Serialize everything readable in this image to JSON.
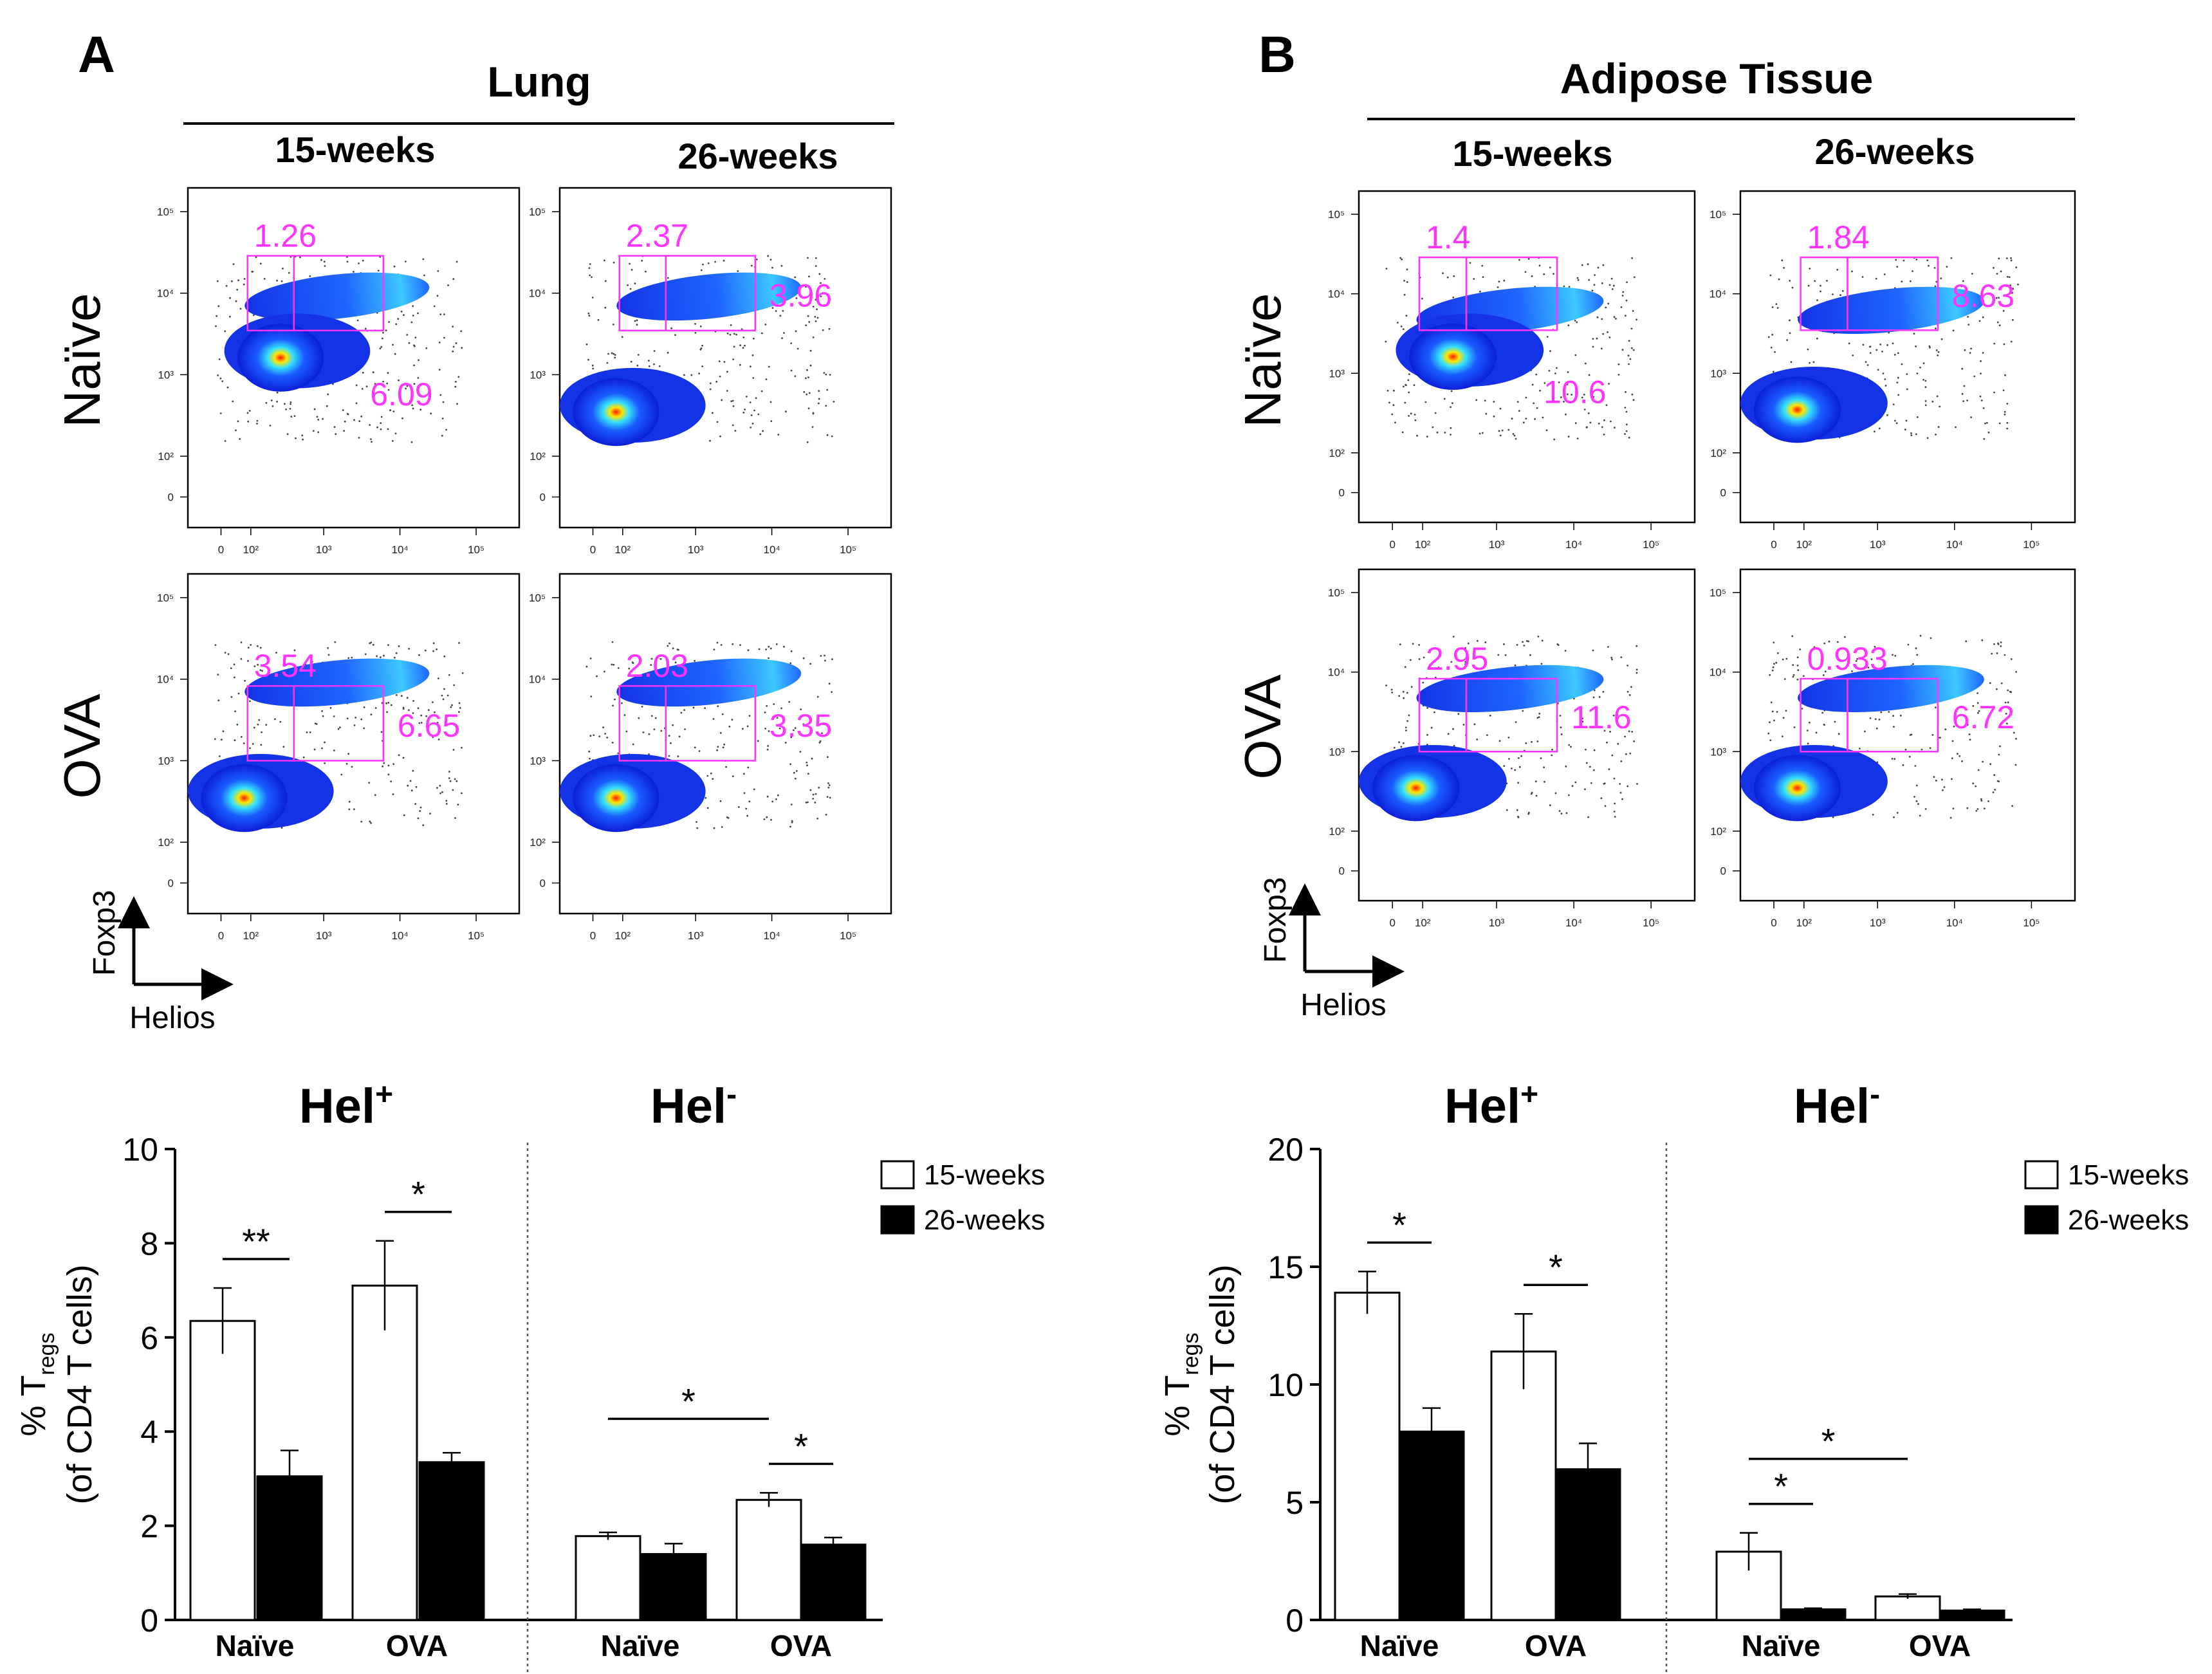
{
  "colors": {
    "gate": "#ff33ff",
    "gate_label": "#ff33ff",
    "bar_15": "#ffffff",
    "bar_26": "#000000",
    "axis": "#000000",
    "dens_low": "#0d1fd9",
    "dens_mid": "#33e0ff",
    "dens_high": "#ffe600",
    "dens_peak": "#ff1a00"
  },
  "panels": [
    {
      "letter": "A",
      "tissue": "Lung",
      "col_labels": [
        "15-weeks",
        "26-weeks"
      ],
      "row_labels": [
        "Naïve",
        "OVA"
      ],
      "axis_y_label": "Foxp3",
      "axis_x_label": "Helios",
      "y_ticks": [
        "10⁵",
        "10⁴",
        "10³",
        "10²",
        "0"
      ],
      "x_ticks": [
        "0",
        "10²",
        "10³",
        "10⁴",
        "10⁵"
      ],
      "plots": [
        {
          "row": "Naïve",
          "col": "15-weeks",
          "gate_neg_value": "1.26",
          "gate_pos_value": "6.09"
        },
        {
          "row": "Naïve",
          "col": "26-weeks",
          "gate_neg_value": "2.37",
          "gate_pos_value": "3.96"
        },
        {
          "row": "OVA",
          "col": "15-weeks",
          "gate_neg_value": "3.54",
          "gate_pos_value": "6.65"
        },
        {
          "row": "OVA",
          "col": "26-weeks",
          "gate_neg_value": "2.03",
          "gate_pos_value": "3.35"
        }
      ]
    },
    {
      "letter": "B",
      "tissue": "Adipose Tissue",
      "col_labels": [
        "15-weeks",
        "26-weeks"
      ],
      "row_labels": [
        "Naïve",
        "OVA"
      ],
      "axis_y_label": "Foxp3",
      "axis_x_label": "Helios",
      "y_ticks": [
        "10⁵",
        "10⁴",
        "10³",
        "10²",
        "0"
      ],
      "x_ticks": [
        "0",
        "10²",
        "10³",
        "10⁴",
        "10⁵"
      ],
      "plots": [
        {
          "row": "Naïve",
          "col": "15-weeks",
          "gate_neg_value": "1.4",
          "gate_pos_value": "10.6"
        },
        {
          "row": "Naïve",
          "col": "26-weeks",
          "gate_neg_value": "1.84",
          "gate_pos_value": "8.63"
        },
        {
          "row": "OVA",
          "col": "15-weeks",
          "gate_neg_value": "2.95",
          "gate_pos_value": "11.6"
        },
        {
          "row": "OVA",
          "col": "26-weeks",
          "gate_neg_value": "0.933",
          "gate_pos_value": "6.72"
        }
      ]
    }
  ],
  "chart_data": [
    {
      "type": "bar",
      "panel": "A",
      "ylabel_main": "% T",
      "ylabel_sub": "regs",
      "ylabel_line2": "(of CD4 T cells)",
      "ylim": [
        0,
        10
      ],
      "yticks": [
        0,
        2,
        4,
        6,
        8,
        10
      ],
      "legend": [
        "15-weeks",
        "26-weeks"
      ],
      "groups": [
        {
          "title_main": "Hel",
          "title_sup": "+",
          "categories": [
            "Naïve",
            "OVA"
          ],
          "series": [
            {
              "name": "15-weeks",
              "values": [
                6.35,
                7.1
              ],
              "errors": [
                0.7,
                0.95
              ]
            },
            {
              "name": "26-weeks",
              "values": [
                3.05,
                3.35
              ],
              "errors": [
                0.55,
                0.2
              ]
            }
          ],
          "significance": [
            {
              "label": "**",
              "between": "Naïve 15-weeks vs Naïve 26-weeks"
            },
            {
              "label": "*",
              "between": "OVA 15-weeks vs OVA 26-weeks"
            }
          ]
        },
        {
          "title_main": "Hel",
          "title_sup": "-",
          "categories": [
            "Naïve",
            "OVA"
          ],
          "series": [
            {
              "name": "15-weeks",
              "values": [
                1.78,
                2.55
              ],
              "errors": [
                0.08,
                0.15
              ]
            },
            {
              "name": "26-weeks",
              "values": [
                1.4,
                1.6
              ],
              "errors": [
                0.22,
                0.15
              ]
            }
          ],
          "significance": [
            {
              "label": "*",
              "between": "Naïve 15-weeks vs OVA 15-weeks"
            },
            {
              "label": "*",
              "between": "OVA 15-weeks vs OVA 26-weeks"
            }
          ]
        }
      ]
    },
    {
      "type": "bar",
      "panel": "B",
      "ylabel_main": "% T",
      "ylabel_sub": "regs",
      "ylabel_line2": "(of CD4 T cells)",
      "ylim": [
        0,
        20
      ],
      "yticks": [
        0,
        5,
        10,
        15,
        20
      ],
      "legend": [
        "15-weeks",
        "26-weeks"
      ],
      "groups": [
        {
          "title_main": "Hel",
          "title_sup": "+",
          "categories": [
            "Naïve",
            "OVA"
          ],
          "series": [
            {
              "name": "15-weeks",
              "values": [
                13.9,
                11.4
              ],
              "errors": [
                0.9,
                1.6
              ]
            },
            {
              "name": "26-weeks",
              "values": [
                8.0,
                6.4
              ],
              "errors": [
                1.0,
                1.1
              ]
            }
          ],
          "significance": [
            {
              "label": "*",
              "between": "Naïve 15-weeks vs Naïve 26-weeks"
            },
            {
              "label": "*",
              "between": "OVA 15-weeks vs OVA 26-weeks"
            }
          ]
        },
        {
          "title_main": "Hel",
          "title_sup": "-",
          "categories": [
            "Naïve",
            "OVA"
          ],
          "series": [
            {
              "name": "15-weeks",
              "values": [
                2.9,
                1.0
              ],
              "errors": [
                0.8,
                0.1
              ]
            },
            {
              "name": "26-weeks",
              "values": [
                0.45,
                0.4
              ],
              "errors": [
                0.05,
                0.05
              ]
            }
          ],
          "significance": [
            {
              "label": "*",
              "between": "Naïve 15-weeks vs Naïve 26-weeks"
            },
            {
              "label": "*",
              "between": "Naïve 15-weeks vs OVA 15-weeks"
            }
          ]
        }
      ]
    }
  ]
}
